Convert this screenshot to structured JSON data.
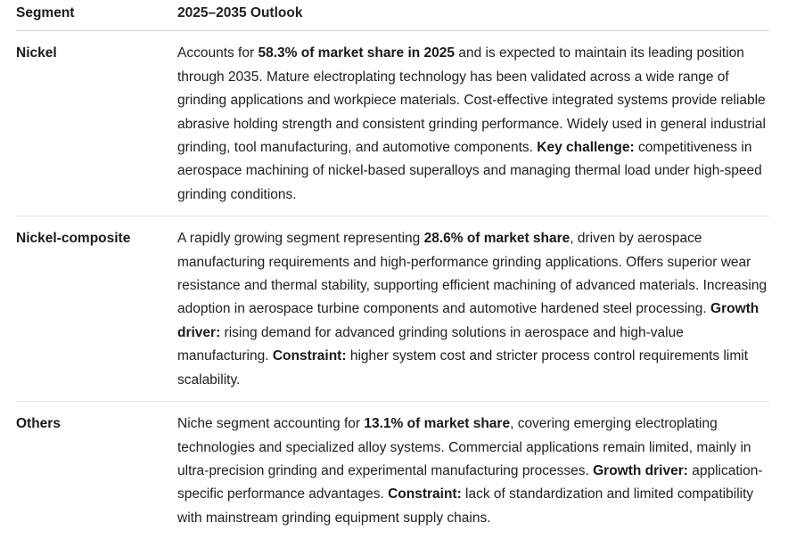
{
  "colors": {
    "text": "#1f1f1f",
    "header_divider": "#d2d2d2",
    "row_divider": "#e4e4e4",
    "background": "#ffffff"
  },
  "table": {
    "headers": [
      "Segment",
      "2025–2035 Outlook"
    ],
    "rows": [
      {
        "segment": "Nickel",
        "outlook": [
          {
            "text": "Accounts for ",
            "bold": false
          },
          {
            "text": "58.3% of market share in 2025",
            "bold": true
          },
          {
            "text": " and is expected to maintain its leading position through 2035. Mature electroplating technology has been validated across a wide range of grinding applications and workpiece materials. Cost-effective integrated systems provide reliable abrasive holding strength and consistent grinding performance. Widely used in general industrial grinding, tool manufacturing, and automotive components. ",
            "bold": false
          },
          {
            "text": "Key challenge:",
            "bold": true
          },
          {
            "text": " competitiveness in aerospace machining of nickel-based superalloys and managing thermal load under high-speed grinding conditions.",
            "bold": false
          }
        ]
      },
      {
        "segment": "Nickel-composite",
        "outlook": [
          {
            "text": "A rapidly growing segment representing ",
            "bold": false
          },
          {
            "text": "28.6% of market share",
            "bold": true
          },
          {
            "text": ", driven by aerospace manufacturing requirements and high-performance grinding applications. Offers superior wear resistance and thermal stability, supporting efficient machining of advanced materials. Increasing adoption in aerospace turbine components and automotive hardened steel processing. ",
            "bold": false
          },
          {
            "text": "Growth driver:",
            "bold": true
          },
          {
            "text": " rising demand for advanced grinding solutions in aerospace and high-value manufacturing. ",
            "bold": false
          },
          {
            "text": "Constraint:",
            "bold": true
          },
          {
            "text": " higher system cost and stricter process control requirements limit scalability.",
            "bold": false
          }
        ]
      },
      {
        "segment": "Others",
        "outlook": [
          {
            "text": "Niche segment accounting for ",
            "bold": false
          },
          {
            "text": "13.1% of market share",
            "bold": true
          },
          {
            "text": ", covering emerging electroplating technologies and specialized alloy systems. Commercial applications remain limited, mainly in ultra-precision grinding and experimental manufacturing processes. ",
            "bold": false
          },
          {
            "text": "Growth driver:",
            "bold": true
          },
          {
            "text": " application-specific performance advantages. ",
            "bold": false
          },
          {
            "text": "Constraint:",
            "bold": true
          },
          {
            "text": " lack of standardization and limited compatibility with mainstream grinding equipment supply chains.",
            "bold": false
          }
        ]
      }
    ]
  }
}
